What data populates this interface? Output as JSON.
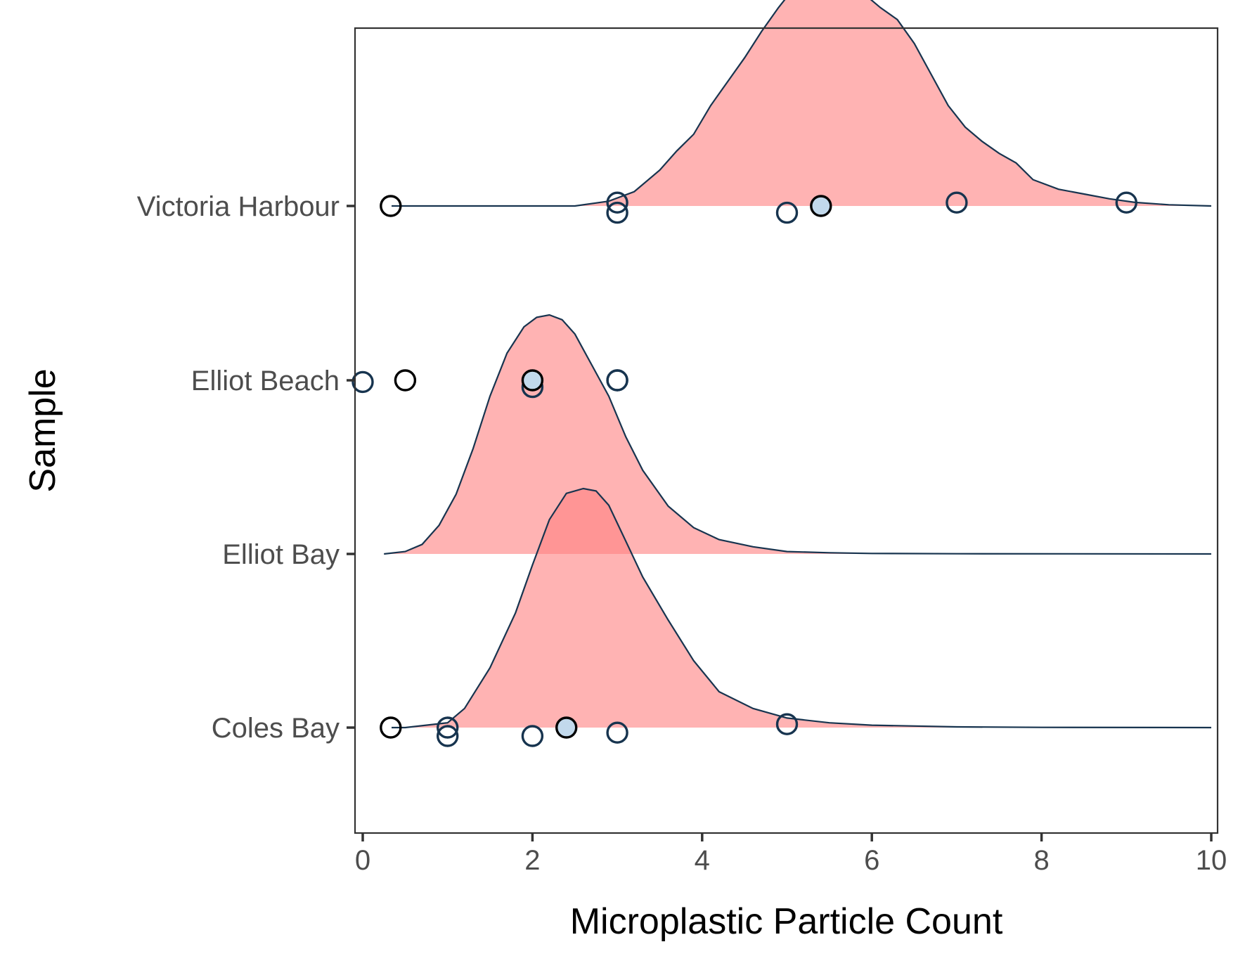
{
  "chart_data": {
    "type": "ridgeline",
    "xlabel": "Microplastic Particle Count",
    "ylabel": "Sample",
    "xlim": [
      -0.05,
      10.05
    ],
    "xticks": [
      0,
      2,
      4,
      6,
      8,
      10
    ],
    "xtick_labels": [
      "0",
      "2",
      "4",
      "6",
      "8",
      "10"
    ],
    "categories": [
      "Coles Bay",
      "Elliot Bay",
      "Elliot Beach",
      "Victoria Harbour"
    ],
    "grid": false,
    "colors": {
      "density_fill": "#FF8080",
      "density_fill_opacity": 0.6,
      "density_line": "#17344F",
      "point_stroke": "#17344F",
      "point_fill_highlight": "#C2D9EC",
      "point_stroke_dark": "#000000"
    },
    "densities": [
      {
        "category": "Coles Bay",
        "x": [
          0.34,
          0.5,
          1.0,
          1.2,
          1.5,
          1.8,
          2.0,
          2.2,
          2.4,
          2.6,
          2.75,
          2.9,
          3.1,
          3.3,
          3.6,
          3.9,
          4.2,
          4.6,
          5.0,
          5.5,
          6.0,
          7.0,
          8.0,
          10.0
        ],
        "y": [
          0.0,
          0.0,
          0.02,
          0.08,
          0.25,
          0.48,
          0.68,
          0.87,
          0.98,
          1.0,
          0.99,
          0.93,
          0.78,
          0.63,
          0.45,
          0.28,
          0.15,
          0.08,
          0.04,
          0.02,
          0.01,
          0.003,
          0.001,
          0.0
        ]
      },
      {
        "category": "Elliot Bay",
        "x": [
          0.25,
          0.5,
          0.7,
          0.9,
          1.1,
          1.3,
          1.5,
          1.7,
          1.9,
          2.05,
          2.2,
          2.35,
          2.5,
          2.7,
          2.9,
          3.1,
          3.3,
          3.6,
          3.9,
          4.2,
          4.6,
          5.0,
          5.5,
          6.0,
          7.0,
          10.0
        ],
        "y": [
          0.0,
          0.01,
          0.04,
          0.12,
          0.25,
          0.44,
          0.66,
          0.84,
          0.95,
          0.99,
          1.0,
          0.98,
          0.92,
          0.79,
          0.66,
          0.49,
          0.35,
          0.2,
          0.11,
          0.06,
          0.03,
          0.01,
          0.005,
          0.002,
          0.001,
          0.0
        ]
      },
      {
        "category": "Victoria Harbour",
        "x": [
          0.34,
          2.5,
          2.9,
          3.2,
          3.5,
          3.7,
          3.9,
          4.1,
          4.3,
          4.5,
          4.7,
          4.9,
          5.1,
          5.3,
          5.5,
          5.7,
          5.9,
          6.1,
          6.3,
          6.5,
          6.7,
          6.9,
          7.1,
          7.3,
          7.5,
          7.7,
          7.9,
          8.2,
          8.5,
          8.8,
          9.1,
          9.5,
          10.0
        ],
        "y": [
          0.0,
          0.0,
          0.02,
          0.06,
          0.15,
          0.23,
          0.3,
          0.42,
          0.52,
          0.62,
          0.73,
          0.83,
          0.92,
          0.98,
          1.0,
          0.96,
          0.89,
          0.83,
          0.78,
          0.68,
          0.55,
          0.42,
          0.33,
          0.27,
          0.22,
          0.18,
          0.11,
          0.07,
          0.05,
          0.03,
          0.015,
          0.005,
          0.0
        ]
      }
    ],
    "points": [
      {
        "category": "Coles Bay",
        "x": 0.33,
        "dy": 0.0,
        "style": "dark"
      },
      {
        "category": "Coles Bay",
        "x": 1.0,
        "dy": 0.0,
        "style": "open"
      },
      {
        "category": "Coles Bay",
        "x": 1.0,
        "dy": -0.05,
        "style": "open"
      },
      {
        "category": "Coles Bay",
        "x": 2.0,
        "dy": -0.05,
        "style": "open"
      },
      {
        "category": "Coles Bay",
        "x": 2.4,
        "dy": 0.0,
        "style": "mean"
      },
      {
        "category": "Coles Bay",
        "x": 3.0,
        "dy": -0.03,
        "style": "open"
      },
      {
        "category": "Coles Bay",
        "x": 5.0,
        "dy": 0.02,
        "style": "open"
      },
      {
        "category": "Elliot Beach",
        "x": 0.0,
        "dy": -0.01,
        "style": "open"
      },
      {
        "category": "Elliot Beach",
        "x": 0.5,
        "dy": 0.0,
        "style": "dark"
      },
      {
        "category": "Elliot Beach",
        "x": 2.0,
        "dy": -0.04,
        "style": "open"
      },
      {
        "category": "Elliot Beach",
        "x": 2.0,
        "dy": 0.0,
        "style": "mean"
      },
      {
        "category": "Elliot Beach",
        "x": 3.0,
        "dy": 0.0,
        "style": "open"
      },
      {
        "category": "Elliot Beach",
        "x": 3.0,
        "dy": 0.0,
        "style": "open"
      },
      {
        "category": "Victoria Harbour",
        "x": 0.33,
        "dy": 0.0,
        "style": "dark"
      },
      {
        "category": "Victoria Harbour",
        "x": 3.0,
        "dy": 0.02,
        "style": "open"
      },
      {
        "category": "Victoria Harbour",
        "x": 3.0,
        "dy": -0.04,
        "style": "open"
      },
      {
        "category": "Victoria Harbour",
        "x": 5.0,
        "dy": -0.04,
        "style": "open"
      },
      {
        "category": "Victoria Harbour",
        "x": 5.4,
        "dy": 0.0,
        "style": "mean"
      },
      {
        "category": "Victoria Harbour",
        "x": 7.0,
        "dy": 0.02,
        "style": "open"
      },
      {
        "category": "Victoria Harbour",
        "x": 9.0,
        "dy": 0.02,
        "style": "open"
      }
    ]
  }
}
